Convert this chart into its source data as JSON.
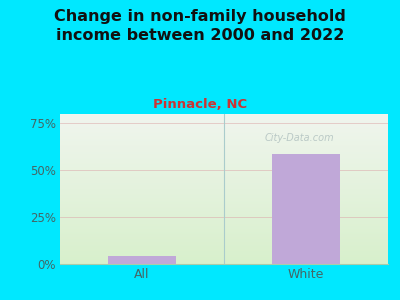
{
  "title": "Change in non-family household\nincome between 2000 and 2022",
  "subtitle": "Pinnacle, NC",
  "categories": [
    "All",
    "White"
  ],
  "values": [
    4.5,
    58.5
  ],
  "bar_color": "#c0a8d8",
  "title_fontsize": 11.5,
  "subtitle_fontsize": 9.5,
  "subtitle_color": "#cc3333",
  "title_color": "#111111",
  "tick_color": "#446666",
  "background_outer": "#00e8ff",
  "background_top": "#f0f5ee",
  "background_bottom": "#d8f0cc",
  "ylim": [
    0,
    80
  ],
  "yticks": [
    0,
    25,
    50,
    75
  ],
  "ytick_labels": [
    "0%",
    "25%",
    "50%",
    "75%"
  ],
  "grid_color": "#ddb0b0",
  "watermark": "City-Data.com",
  "bar_width": 0.42
}
